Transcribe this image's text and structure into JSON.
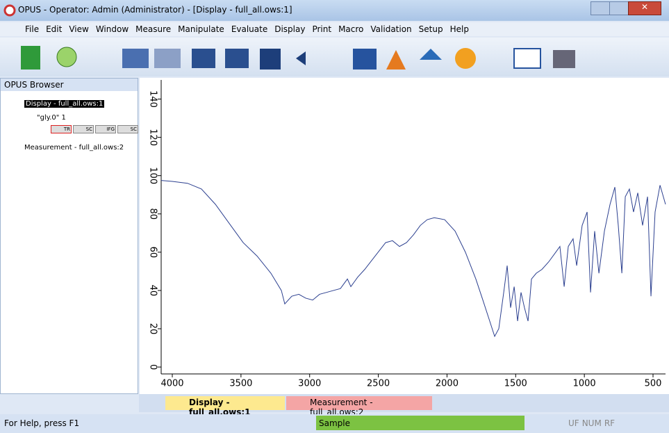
{
  "window_title": "OPUS - Operator: Admin  (Administrator) - [Display - full_all.ows:1]",
  "menu": [
    "File",
    "Edit",
    "View",
    "Window",
    "Measure",
    "Manipulate",
    "Evaluate",
    "Display",
    "Print",
    "Macro",
    "Validation",
    "Setup",
    "Help"
  ],
  "browser": {
    "title": "OPUS Browser",
    "items": [
      "Display - full_all.ows:1",
      "\"gly.0\" 1",
      "Measurement - full_all.ows:2"
    ],
    "blocks": [
      "TR",
      "SC",
      "IFG",
      "SC"
    ]
  },
  "tabs": [
    "Display - full_all.ows:1",
    "Measurement - full_all.ows:2"
  ],
  "status": {
    "help": "For Help, press F1",
    "state": "Sample",
    "indicators": [
      "UF",
      "NUM",
      "RF"
    ]
  },
  "chart_data": {
    "type": "line",
    "color": "#2b3f8f",
    "x": [
      4081,
      4000,
      3889,
      3788,
      3686,
      3585,
      3484,
      3383,
      3282,
      3206,
      3181,
      3130,
      3079,
      3029,
      2978,
      2928,
      2877,
      2827,
      2776,
      2725,
      2700,
      2650,
      2599,
      2523,
      2447,
      2397,
      2346,
      2295,
      2245,
      2194,
      2144,
      2093,
      2017,
      1941,
      1866,
      1790,
      1739,
      1689,
      1653,
      1623,
      1587,
      1562,
      1537,
      1511,
      1486,
      1461,
      1436,
      1410,
      1385,
      1350,
      1309,
      1259,
      1208,
      1178,
      1147,
      1117,
      1082,
      1056,
      1016,
      980,
      955,
      925,
      894,
      854,
      813,
      778,
      753,
      727,
      702,
      672,
      642,
      611,
      576,
      540,
      515,
      485,
      449,
      409
    ],
    "values": [
      97.5,
      97,
      96,
      93,
      85,
      75,
      65,
      58,
      49,
      40,
      33,
      37,
      38,
      36,
      35,
      38,
      39,
      40,
      41,
      46,
      42,
      47,
      51,
      58,
      65,
      66,
      63,
      65,
      69,
      74,
      77,
      78,
      77,
      71,
      60,
      46,
      35,
      24,
      16,
      20,
      39,
      53,
      31,
      42,
      24,
      39,
      31,
      24,
      46,
      49,
      51,
      55,
      60,
      63,
      42,
      63,
      67,
      53,
      74,
      81,
      39,
      71,
      49,
      71,
      85,
      94,
      74,
      49,
      89,
      93,
      81,
      91,
      74,
      89,
      37,
      81,
      95,
      85
    ],
    "xlim": [
      4081,
      409
    ],
    "ylim": [
      -3.6,
      150
    ],
    "xticks": [
      4000,
      3500,
      3000,
      2500,
      2000,
      1500,
      1000,
      500
    ],
    "yticks": [
      0,
      20,
      40,
      60,
      80,
      100,
      120,
      140
    ]
  }
}
